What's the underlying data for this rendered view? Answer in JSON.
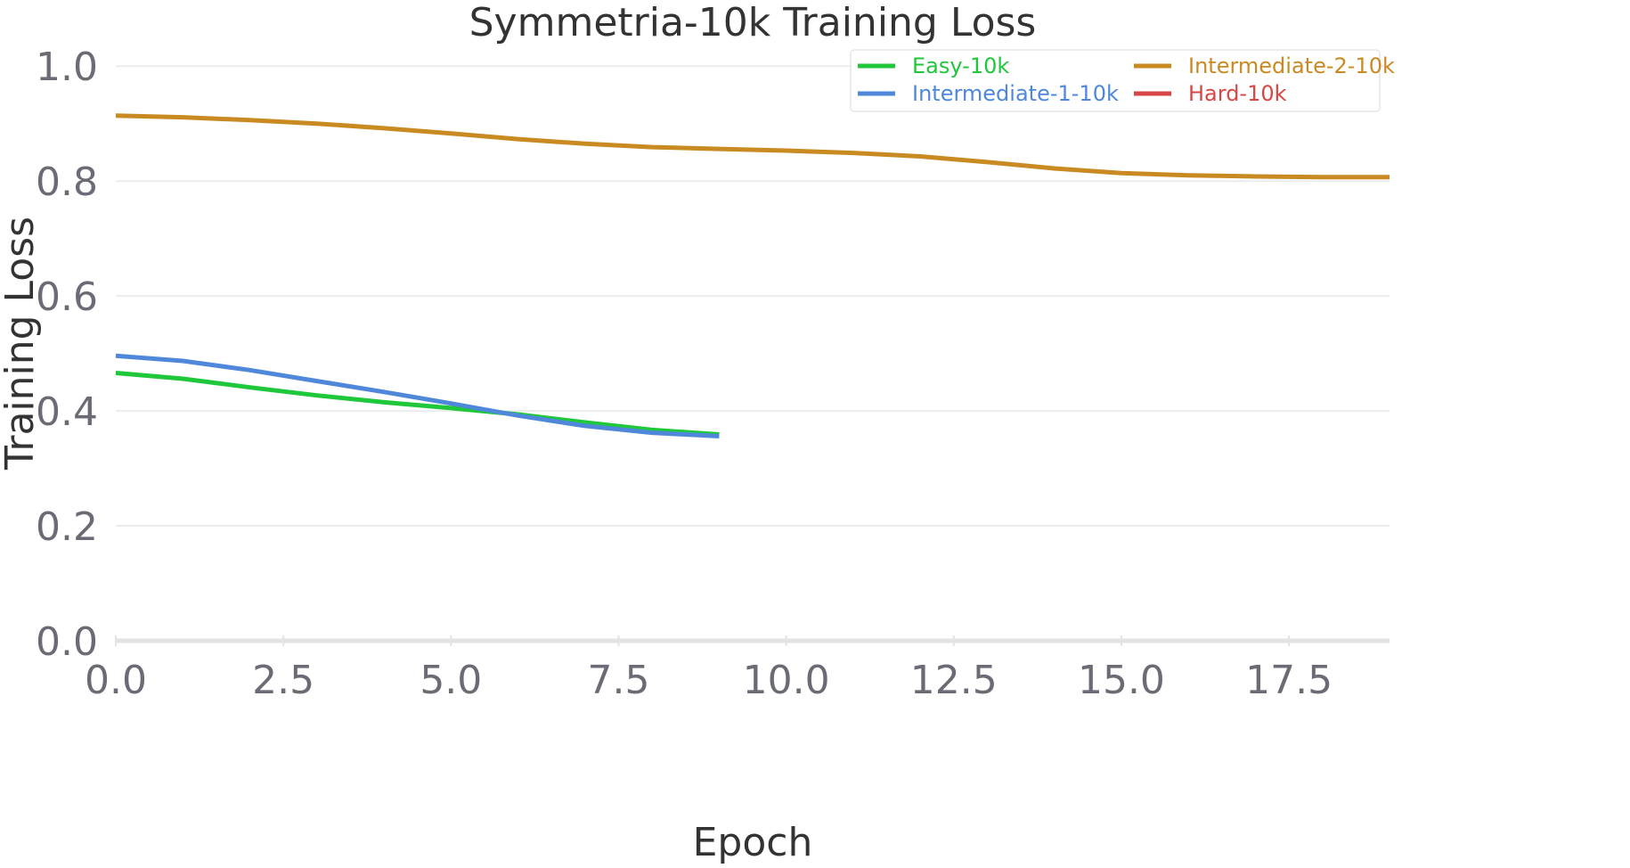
{
  "chart_data": {
    "type": "line",
    "title": "Symmetria-10k Training Loss",
    "xlabel": "Epoch",
    "ylabel": "Training Loss",
    "xlim": [
      0,
      19
    ],
    "ylim": [
      0,
      1.05
    ],
    "x_ticks": [
      "0.0",
      "2.5",
      "5.0",
      "7.5",
      "10.0",
      "12.5",
      "15.0",
      "17.5"
    ],
    "x_tick_values": [
      0,
      2.5,
      5,
      7.5,
      10,
      12.5,
      15,
      17.5
    ],
    "y_ticks": [
      "0.0",
      "0.2",
      "0.4",
      "0.6",
      "0.8",
      "1.0"
    ],
    "y_tick_values": [
      0,
      0.2,
      0.4,
      0.6,
      0.8,
      1.0
    ],
    "grid": "horizontal",
    "legend_position": "top-right",
    "series": [
      {
        "name": "Easy-10k",
        "color": "#1ec83a",
        "x": [
          0,
          1,
          2,
          3,
          4,
          5,
          6,
          7,
          8,
          9
        ],
        "y": [
          0.466,
          0.456,
          0.441,
          0.427,
          0.415,
          0.405,
          0.394,
          0.38,
          0.367,
          0.359
        ]
      },
      {
        "name": "Intermediate-1-10k",
        "color": "#4f88da",
        "x": [
          0,
          1,
          2,
          3,
          4,
          5,
          6,
          7,
          8,
          9
        ],
        "y": [
          0.496,
          0.487,
          0.471,
          0.452,
          0.433,
          0.413,
          0.392,
          0.374,
          0.362,
          0.356
        ]
      },
      {
        "name": "Intermediate-2-10k",
        "color": "#c98a22",
        "x": [
          0,
          1,
          2,
          3,
          4,
          5,
          6,
          7,
          8,
          9,
          10,
          11,
          12,
          13,
          14,
          15,
          16,
          17,
          18,
          19
        ],
        "y": [
          0.914,
          0.911,
          0.906,
          0.9,
          0.892,
          0.883,
          0.873,
          0.865,
          0.859,
          0.856,
          0.853,
          0.849,
          0.843,
          0.833,
          0.822,
          0.814,
          0.81,
          0.808,
          0.807,
          0.807
        ]
      },
      {
        "name": "Hard-10k",
        "color": "#d94646",
        "x": [],
        "y": []
      }
    ]
  }
}
